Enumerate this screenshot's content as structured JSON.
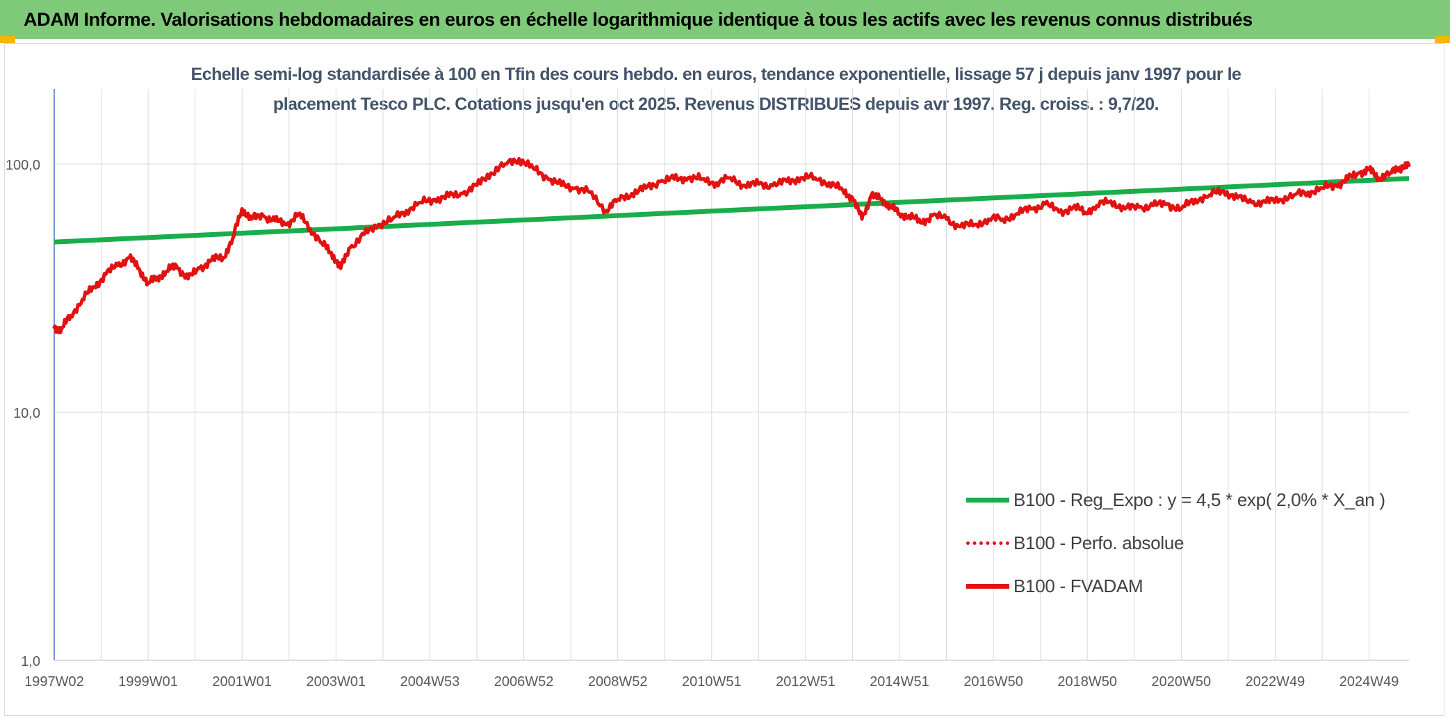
{
  "banner": {
    "title": "ADAM Informe. Valorisations hebdomadaires en euros en échelle logarithmique identique à tous les actifs avec les revenus connus distribués"
  },
  "colors": {
    "banner_bg": "#7fca78",
    "trend": "#1aad4b",
    "perf": "#e31212",
    "title_text": "#44546a"
  },
  "chart_data": {
    "type": "line",
    "title_line1": "Echelle semi-log standardisée à 100 en Tfin des cours hebdo. en euros, tendance exponentielle, lissage 57 j depuis janv 1997 pour le",
    "title_line2": "placement Tesco PLC. Cotations jusqu'en oct 2025. Revenus DISTRIBUES depuis avr 1997. Reg. croiss. : 9,7/20.",
    "yscale": "log",
    "ylim": [
      1,
      200
    ],
    "y_ticks": [
      {
        "value": 100,
        "label": "100,0"
      },
      {
        "value": 10,
        "label": "10,0"
      },
      {
        "value": 1,
        "label": "1,0"
      }
    ],
    "xlim": [
      1997.0,
      2025.85
    ],
    "x_ticks": [
      {
        "value": 1997.0,
        "label": "1997W02"
      },
      {
        "value": 1999.0,
        "label": "1999W01"
      },
      {
        "value": 2001.0,
        "label": "2001W01"
      },
      {
        "value": 2003.0,
        "label": "2003W01"
      },
      {
        "value": 2005.0,
        "label": "2004W53"
      },
      {
        "value": 2007.0,
        "label": "2006W52"
      },
      {
        "value": 2009.0,
        "label": "2008W52"
      },
      {
        "value": 2011.0,
        "label": "2010W51"
      },
      {
        "value": 2013.0,
        "label": "2012W51"
      },
      {
        "value": 2015.0,
        "label": "2014W51"
      },
      {
        "value": 2017.0,
        "label": "2016W50"
      },
      {
        "value": 2019.0,
        "label": "2018W50"
      },
      {
        "value": 2021.0,
        "label": "2020W50"
      },
      {
        "value": 2023.0,
        "label": "2022W49"
      },
      {
        "value": 2025.0,
        "label": "2024W49"
      }
    ],
    "grid": "vertical every year, horizontal at 1 / 10 / 100",
    "legend_position": "lower-right",
    "series": [
      {
        "name": "B100 - Reg_Expo : y = 4,5 * exp( 2,0% *  X_an )",
        "style": "solid-green",
        "x": [
          1997.0,
          2025.85
        ],
        "values": [
          48.5,
          87.5
        ]
      },
      {
        "name": "B100 - Perfo. absolue",
        "style": "dotted-red",
        "x": [],
        "values": []
      },
      {
        "name": "B100 - FVADAM",
        "style": "solid-red",
        "x": [
          1997.0,
          1997.15,
          1997.35,
          1997.6,
          1997.85,
          1998.1,
          1998.35,
          1998.6,
          1998.8,
          1999.0,
          1999.2,
          1999.4,
          1999.6,
          1999.85,
          2000.1,
          2000.35,
          2000.6,
          2000.8,
          2001.0,
          2001.2,
          2001.45,
          2001.7,
          2001.95,
          2002.2,
          2002.45,
          2002.7,
          2002.9,
          2003.1,
          2003.3,
          2003.6,
          2003.9,
          2004.2,
          2004.5,
          2004.8,
          2005.1,
          2005.4,
          2005.7,
          2006.0,
          2006.3,
          2006.6,
          2006.9,
          2007.2,
          2007.5,
          2007.8,
          2008.1,
          2008.4,
          2008.75,
          2009.0,
          2009.3,
          2009.6,
          2009.9,
          2010.2,
          2010.5,
          2010.8,
          2011.1,
          2011.4,
          2011.7,
          2012.0,
          2012.3,
          2012.6,
          2012.9,
          2013.2,
          2013.5,
          2013.8,
          2014.0,
          2014.2,
          2014.4,
          2014.6,
          2014.8,
          2015.0,
          2015.2,
          2015.45,
          2015.7,
          2016.0,
          2016.3,
          2016.6,
          2016.9,
          2017.2,
          2017.5,
          2017.8,
          2018.1,
          2018.4,
          2018.7,
          2018.95,
          2019.2,
          2019.5,
          2019.8,
          2020.1,
          2020.4,
          2020.7,
          2021.0,
          2021.3,
          2021.6,
          2021.9,
          2022.2,
          2022.5,
          2022.8,
          2023.1,
          2023.4,
          2023.7,
          2024.0,
          2024.3,
          2024.55,
          2024.8,
          2025.0,
          2025.2,
          2025.45,
          2025.65,
          2025.85
        ],
        "values": [
          22,
          21.5,
          24.5,
          28.5,
          32,
          36,
          39,
          42,
          38,
          33,
          35,
          37,
          39,
          34.5,
          38,
          41,
          42,
          50,
          66,
          60,
          62,
          59,
          57,
          63,
          55,
          48,
          44,
          38,
          46,
          52,
          57,
          60,
          65,
          70,
          72,
          74,
          76,
          82,
          92,
          100,
          105,
          96,
          88,
          82,
          80,
          77,
          65,
          72,
          76,
          80,
          85,
          87,
          88,
          87,
          84,
          88,
          82,
          83,
          82,
          85,
          88,
          88,
          84,
          78,
          73,
          60,
          75,
          72,
          68,
          63,
          62,
          58,
          62,
          60,
          56,
          57,
          60,
          60,
          63,
          66,
          69,
          64,
          67,
          64,
          68,
          71,
          66,
          67,
          68,
          69,
          66,
          72,
          75,
          78,
          73,
          70,
          70,
          72,
          75,
          77,
          80,
          82,
          87,
          92,
          95,
          88,
          92,
          97,
          99
        ]
      }
    ]
  }
}
